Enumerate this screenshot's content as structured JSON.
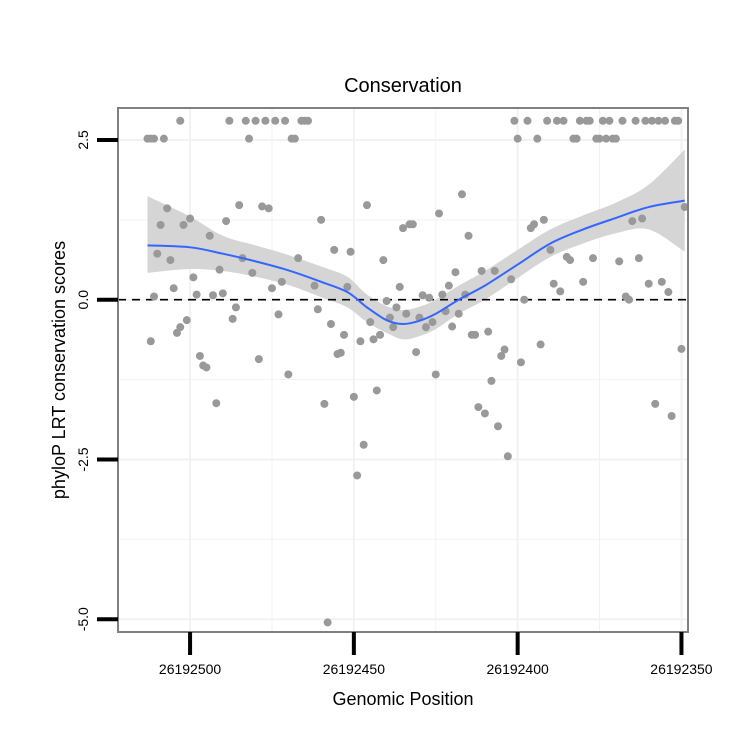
{
  "chart_data": {
    "type": "scatter",
    "title": "Conservation",
    "xlabel": "Genomic Position",
    "ylabel": "phyloP LRT conservation scores",
    "x_reversed": true,
    "xlim": [
      26192522,
      26192348
    ],
    "ylim": [
      -5.2,
      3.0
    ],
    "x_ticks": [
      26192500,
      26192450,
      26192400,
      26192350
    ],
    "x_tick_labels": [
      "26192500",
      "26192450",
      "26192400",
      "26192350"
    ],
    "y_ticks": [
      -5.0,
      -2.5,
      0.0,
      2.5
    ],
    "y_tick_labels": [
      "-5.0",
      "-2.5",
      "0.0",
      "2.5"
    ],
    "reference_line": {
      "y": 0,
      "style": "dashed",
      "color": "#000000"
    },
    "grid": true,
    "colors": {
      "points": "#999999",
      "smooth_line": "#3366FF",
      "confidence_band": "#D3D3D3",
      "panel_border": "#808080",
      "grid": "#F2F2F2"
    },
    "points": [
      {
        "x": 26192513,
        "y": 2.52
      },
      {
        "x": 26192512,
        "y": 2.52
      },
      {
        "x": 26192511,
        "y": 2.52
      },
      {
        "x": 26192508,
        "y": 2.52
      },
      {
        "x": 26192503,
        "y": 2.8
      },
      {
        "x": 26192512,
        "y": -0.65
      },
      {
        "x": 26192511,
        "y": 0.05
      },
      {
        "x": 26192510,
        "y": 0.72
      },
      {
        "x": 26192509,
        "y": 1.17
      },
      {
        "x": 26192507,
        "y": 1.43
      },
      {
        "x": 26192506,
        "y": 0.62
      },
      {
        "x": 26192505,
        "y": 0.18
      },
      {
        "x": 26192504,
        "y": -0.52
      },
      {
        "x": 26192503,
        "y": -0.43
      },
      {
        "x": 26192502,
        "y": 1.17
      },
      {
        "x": 26192501,
        "y": -0.32
      },
      {
        "x": 26192500,
        "y": 1.27
      },
      {
        "x": 26192499,
        "y": 0.35
      },
      {
        "x": 26192498,
        "y": 0.08
      },
      {
        "x": 26192497,
        "y": -0.88
      },
      {
        "x": 26192496,
        "y": -1.03
      },
      {
        "x": 26192495,
        "y": -1.06
      },
      {
        "x": 26192494,
        "y": 1.0
      },
      {
        "x": 26192493,
        "y": 0.07
      },
      {
        "x": 26192492,
        "y": -1.62
      },
      {
        "x": 26192491,
        "y": 0.47
      },
      {
        "x": 26192490,
        "y": 0.1
      },
      {
        "x": 26192489,
        "y": 1.23
      },
      {
        "x": 26192488,
        "y": 2.8
      },
      {
        "x": 26192487,
        "y": -0.3
      },
      {
        "x": 26192486,
        "y": -0.12
      },
      {
        "x": 26192485,
        "y": 1.48
      },
      {
        "x": 26192484,
        "y": 0.65
      },
      {
        "x": 26192483,
        "y": 2.8
      },
      {
        "x": 26192482,
        "y": 2.52
      },
      {
        "x": 26192481,
        "y": 0.42
      },
      {
        "x": 26192480,
        "y": 2.8
      },
      {
        "x": 26192479,
        "y": -0.93
      },
      {
        "x": 26192478,
        "y": 1.46
      },
      {
        "x": 26192477,
        "y": 2.8
      },
      {
        "x": 26192476,
        "y": 1.43
      },
      {
        "x": 26192475,
        "y": 0.18
      },
      {
        "x": 26192474,
        "y": 2.8
      },
      {
        "x": 26192473,
        "y": -0.23
      },
      {
        "x": 26192472,
        "y": 0.28
      },
      {
        "x": 26192471,
        "y": 2.8
      },
      {
        "x": 26192470,
        "y": -1.17
      },
      {
        "x": 26192469,
        "y": 2.52
      },
      {
        "x": 26192468,
        "y": 2.52
      },
      {
        "x": 26192467,
        "y": 0.65
      },
      {
        "x": 26192466,
        "y": 2.8
      },
      {
        "x": 26192465,
        "y": 2.8
      },
      {
        "x": 26192464,
        "y": 2.8
      },
      {
        "x": 26192462,
        "y": 0.22
      },
      {
        "x": 26192461,
        "y": -0.15
      },
      {
        "x": 26192460,
        "y": 1.25
      },
      {
        "x": 26192459,
        "y": -1.63
      },
      {
        "x": 26192458,
        "y": -5.05
      },
      {
        "x": 26192457,
        "y": -0.38
      },
      {
        "x": 26192456,
        "y": 0.78
      },
      {
        "x": 26192455,
        "y": -0.85
      },
      {
        "x": 26192454,
        "y": -0.83
      },
      {
        "x": 26192453,
        "y": -0.55
      },
      {
        "x": 26192452,
        "y": 0.2
      },
      {
        "x": 26192451,
        "y": 0.75
      },
      {
        "x": 26192450,
        "y": -1.52
      },
      {
        "x": 26192449,
        "y": -2.75
      },
      {
        "x": 26192448,
        "y": -0.65
      },
      {
        "x": 26192447,
        "y": -2.27
      },
      {
        "x": 26192446,
        "y": 1.48
      },
      {
        "x": 26192445,
        "y": -0.35
      },
      {
        "x": 26192444,
        "y": -0.62
      },
      {
        "x": 26192443,
        "y": -1.42
      },
      {
        "x": 26192442,
        "y": -0.55
      },
      {
        "x": 26192441,
        "y": 0.62
      },
      {
        "x": 26192440,
        "y": -0.02
      },
      {
        "x": 26192439,
        "y": -0.28
      },
      {
        "x": 26192438,
        "y": -0.43
      },
      {
        "x": 26192437,
        "y": -0.12
      },
      {
        "x": 26192436,
        "y": 0.2
      },
      {
        "x": 26192435,
        "y": 1.12
      },
      {
        "x": 26192434,
        "y": -0.22
      },
      {
        "x": 26192433,
        "y": 1.18
      },
      {
        "x": 26192432,
        "y": 1.18
      },
      {
        "x": 26192431,
        "y": -0.82
      },
      {
        "x": 26192430,
        "y": -0.28
      },
      {
        "x": 26192429,
        "y": 0.07
      },
      {
        "x": 26192428,
        "y": -0.43
      },
      {
        "x": 26192427,
        "y": 0.03
      },
      {
        "x": 26192426,
        "y": -0.35
      },
      {
        "x": 26192425,
        "y": -1.17
      },
      {
        "x": 26192424,
        "y": 1.35
      },
      {
        "x": 26192423,
        "y": 0.08
      },
      {
        "x": 26192422,
        "y": -0.18
      },
      {
        "x": 26192421,
        "y": 0.22
      },
      {
        "x": 26192420,
        "y": -0.42
      },
      {
        "x": 26192419,
        "y": 0.43
      },
      {
        "x": 26192418,
        "y": -0.22
      },
      {
        "x": 26192417,
        "y": 1.65
      },
      {
        "x": 26192416,
        "y": 0.08
      },
      {
        "x": 26192415,
        "y": 1.0
      },
      {
        "x": 26192414,
        "y": -0.55
      },
      {
        "x": 26192413,
        "y": -0.55
      },
      {
        "x": 26192412,
        "y": -1.68
      },
      {
        "x": 26192411,
        "y": 0.45
      },
      {
        "x": 26192410,
        "y": -1.78
      },
      {
        "x": 26192409,
        "y": -0.5
      },
      {
        "x": 26192408,
        "y": -1.27
      },
      {
        "x": 26192407,
        "y": 0.45
      },
      {
        "x": 26192406,
        "y": -1.98
      },
      {
        "x": 26192405,
        "y": -0.88
      },
      {
        "x": 26192404,
        "y": -0.78
      },
      {
        "x": 26192403,
        "y": -2.45
      },
      {
        "x": 26192402,
        "y": 0.32
      },
      {
        "x": 26192401,
        "y": 2.8
      },
      {
        "x": 26192400,
        "y": 2.52
      },
      {
        "x": 26192399,
        "y": -0.98
      },
      {
        "x": 26192398,
        "y": 0.0
      },
      {
        "x": 26192397,
        "y": 2.8
      },
      {
        "x": 26192396,
        "y": 1.12
      },
      {
        "x": 26192395,
        "y": 1.18
      },
      {
        "x": 26192394,
        "y": 2.52
      },
      {
        "x": 26192393,
        "y": -0.7
      },
      {
        "x": 26192392,
        "y": 1.25
      },
      {
        "x": 26192391,
        "y": 2.8
      },
      {
        "x": 26192390,
        "y": 0.78
      },
      {
        "x": 26192389,
        "y": 0.25
      },
      {
        "x": 26192388,
        "y": 2.8
      },
      {
        "x": 26192387,
        "y": 0.13
      },
      {
        "x": 26192386,
        "y": 2.8
      },
      {
        "x": 26192385,
        "y": 0.67
      },
      {
        "x": 26192384,
        "y": 0.62
      },
      {
        "x": 26192383,
        "y": 2.52
      },
      {
        "x": 26192382,
        "y": 2.52
      },
      {
        "x": 26192381,
        "y": 2.8
      },
      {
        "x": 26192380,
        "y": 0.28
      },
      {
        "x": 26192379,
        "y": 2.8
      },
      {
        "x": 26192378,
        "y": 2.8
      },
      {
        "x": 26192377,
        "y": 0.65
      },
      {
        "x": 26192376,
        "y": 2.52
      },
      {
        "x": 26192375,
        "y": 2.52
      },
      {
        "x": 26192374,
        "y": 2.8
      },
      {
        "x": 26192373,
        "y": 2.52
      },
      {
        "x": 26192372,
        "y": 2.8
      },
      {
        "x": 26192371,
        "y": 2.52
      },
      {
        "x": 26192370,
        "y": 2.52
      },
      {
        "x": 26192369,
        "y": 0.6
      },
      {
        "x": 26192368,
        "y": 2.8
      },
      {
        "x": 26192367,
        "y": 0.05
      },
      {
        "x": 26192366,
        "y": 0.0
      },
      {
        "x": 26192365,
        "y": 1.23
      },
      {
        "x": 26192364,
        "y": 2.8
      },
      {
        "x": 26192363,
        "y": 0.65
      },
      {
        "x": 26192362,
        "y": 1.27
      },
      {
        "x": 26192361,
        "y": 2.8
      },
      {
        "x": 26192360,
        "y": 0.25
      },
      {
        "x": 26192359,
        "y": 2.8
      },
      {
        "x": 26192358,
        "y": -1.63
      },
      {
        "x": 26192357,
        "y": 2.8
      },
      {
        "x": 26192356,
        "y": 0.28
      },
      {
        "x": 26192355,
        "y": 2.8
      },
      {
        "x": 26192354,
        "y": 0.12
      },
      {
        "x": 26192353,
        "y": -1.82
      },
      {
        "x": 26192352,
        "y": 2.8
      },
      {
        "x": 26192351,
        "y": 2.8
      },
      {
        "x": 26192350,
        "y": -0.77
      },
      {
        "x": 26192349,
        "y": 1.45
      }
    ],
    "smooth_curve": [
      {
        "x": 26192513,
        "y": 0.85,
        "lo": 0.42,
        "hi": 1.62
      },
      {
        "x": 26192500,
        "y": 0.82,
        "lo": 0.48,
        "hi": 1.3
      },
      {
        "x": 26192490,
        "y": 0.72,
        "lo": 0.45,
        "hi": 1.0
      },
      {
        "x": 26192480,
        "y": 0.6,
        "lo": 0.36,
        "hi": 0.85
      },
      {
        "x": 26192470,
        "y": 0.46,
        "lo": 0.23,
        "hi": 0.7
      },
      {
        "x": 26192460,
        "y": 0.28,
        "lo": 0.04,
        "hi": 0.52
      },
      {
        "x": 26192452,
        "y": 0.12,
        "lo": -0.12,
        "hi": 0.36
      },
      {
        "x": 26192446,
        "y": -0.12,
        "lo": -0.35,
        "hi": 0.08
      },
      {
        "x": 26192440,
        "y": -0.32,
        "lo": -0.52,
        "hi": -0.1
      },
      {
        "x": 26192435,
        "y": -0.38,
        "lo": -0.62,
        "hi": -0.16
      },
      {
        "x": 26192430,
        "y": -0.33,
        "lo": -0.57,
        "hi": -0.11
      },
      {
        "x": 26192425,
        "y": -0.22,
        "lo": -0.46,
        "hi": 0.0
      },
      {
        "x": 26192418,
        "y": 0.0,
        "lo": -0.22,
        "hi": 0.22
      },
      {
        "x": 26192410,
        "y": 0.22,
        "lo": 0.0,
        "hi": 0.45
      },
      {
        "x": 26192400,
        "y": 0.55,
        "lo": 0.34,
        "hi": 0.78
      },
      {
        "x": 26192390,
        "y": 0.88,
        "lo": 0.67,
        "hi": 1.1
      },
      {
        "x": 26192380,
        "y": 1.1,
        "lo": 0.88,
        "hi": 1.32
      },
      {
        "x": 26192370,
        "y": 1.28,
        "lo": 1.04,
        "hi": 1.52
      },
      {
        "x": 26192360,
        "y": 1.45,
        "lo": 1.1,
        "hi": 1.8
      },
      {
        "x": 26192349,
        "y": 1.55,
        "lo": 0.75,
        "hi": 2.35
      }
    ]
  }
}
